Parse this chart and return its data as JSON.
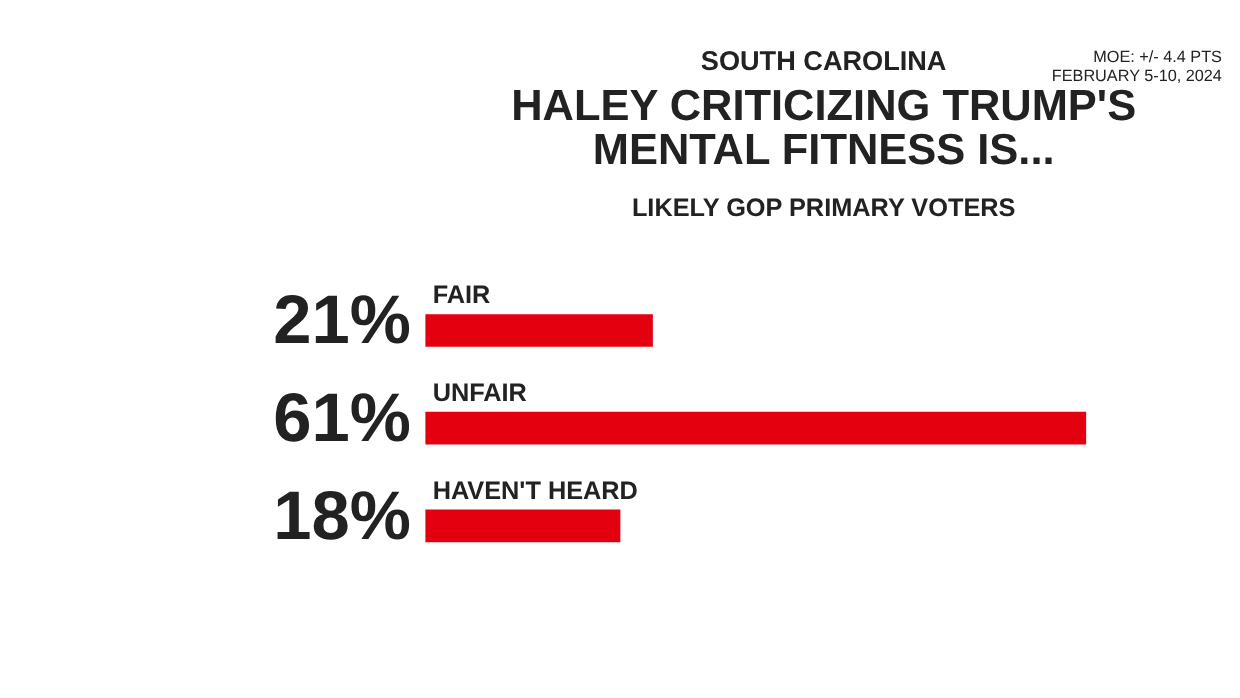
{
  "chart_data": {
    "type": "bar",
    "orientation": "horizontal",
    "title": "HALEY CRITICIZING TRUMP'S MENTAL FITNESS IS...",
    "subtitle": "LIKELY GOP PRIMARY VOTERS",
    "annotations": [
      "SOUTH CAROLINA",
      "MOE: +/- 4.4 PTS",
      "FEBRUARY 5-10, 2024"
    ],
    "categories": [
      "FAIR",
      "UNFAIR",
      "HAVEN'T HEARD"
    ],
    "values": [
      21,
      61,
      18
    ],
    "value_labels": [
      "21%",
      "61%",
      "18%"
    ],
    "color": "#e3000f"
  }
}
